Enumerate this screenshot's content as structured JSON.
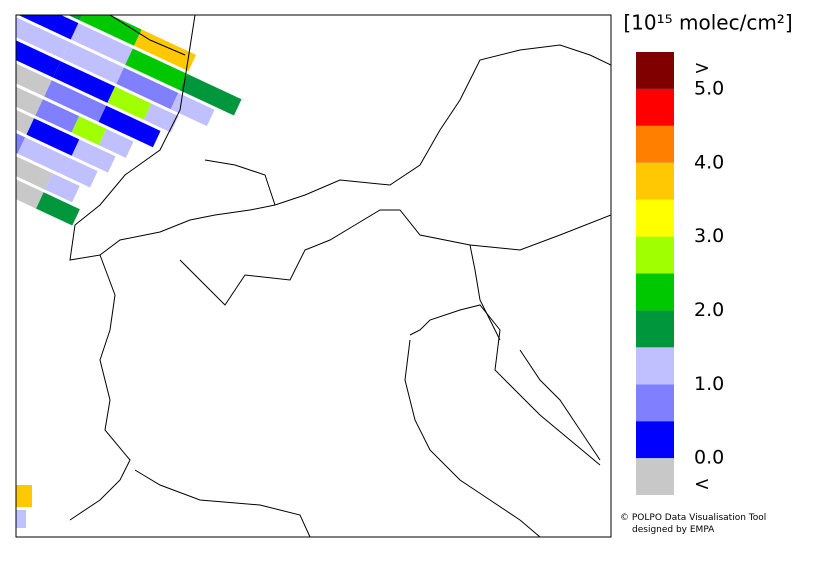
{
  "legend": {
    "unit": "[10¹⁵ molec/cm²]",
    "colors": [
      "#c8c8c8",
      "#0000ff",
      "#8080ff",
      "#c0c0ff",
      "#00963c",
      "#00c800",
      "#a0ff00",
      "#ffff00",
      "#ffc800",
      "#ff8000",
      "#ff0000",
      "#800000"
    ],
    "ticks": [
      {
        "value": 0,
        "label": "0.0"
      },
      {
        "value": 1,
        "label": "1.0"
      },
      {
        "value": 2,
        "label": "2.0"
      },
      {
        "value": 3,
        "label": "3.0"
      },
      {
        "value": 4,
        "label": "4.0"
      },
      {
        "value": 5,
        "label": "5.0"
      }
    ],
    "under": "<",
    "over": ">"
  },
  "credits": [
    "© POLPO Data Visualisation Tool",
    "designed by EMPA"
  ]
}
